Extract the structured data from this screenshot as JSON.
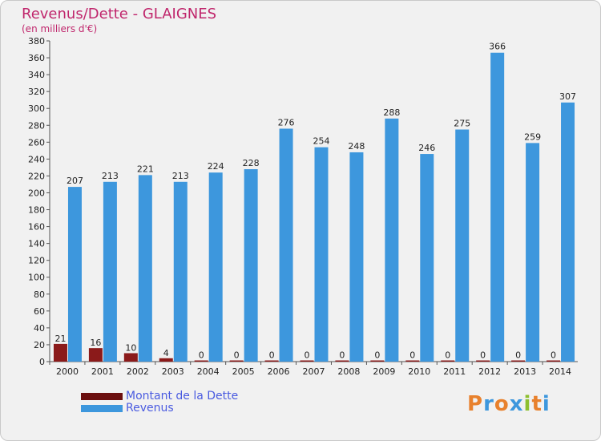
{
  "title": "Revenus/Dette - GLAIGNES",
  "subtitle": "(en milliers d'€)",
  "logo_text": "Proxiti",
  "colors": {
    "dette": "#8b1a1a",
    "revenus": "#3d97dd",
    "title": "#c0266c",
    "legend_text": "#4a5be0"
  },
  "legend": [
    {
      "label": "Montant de la Dette",
      "color": "#6b0f0f"
    },
    {
      "label": "Revenus",
      "color": "#3d97dd"
    }
  ],
  "chart_data": {
    "type": "bar",
    "title": "Revenus/Dette - GLAIGNES",
    "subtitle": "(en milliers d'€)",
    "categories": [
      "2000",
      "2001",
      "2002",
      "2003",
      "2004",
      "2005",
      "2006",
      "2007",
      "2008",
      "2009",
      "2010",
      "2011",
      "2012",
      "2013",
      "2014"
    ],
    "series": [
      {
        "name": "Montant de la Dette",
        "values": [
          21,
          16,
          10,
          4,
          0,
          0,
          0,
          0,
          0,
          0,
          0,
          0,
          0,
          0,
          0
        ]
      },
      {
        "name": "Revenus",
        "values": [
          207,
          213,
          221,
          213,
          224,
          228,
          276,
          254,
          248,
          288,
          246,
          275,
          366,
          259,
          307
        ]
      }
    ],
    "ylim": [
      0,
      380
    ],
    "yticks": [
      0,
      20,
      40,
      60,
      80,
      100,
      120,
      140,
      160,
      180,
      200,
      220,
      240,
      260,
      280,
      300,
      320,
      340,
      360,
      380
    ],
    "grid": false,
    "legend_position": "bottom-left"
  }
}
